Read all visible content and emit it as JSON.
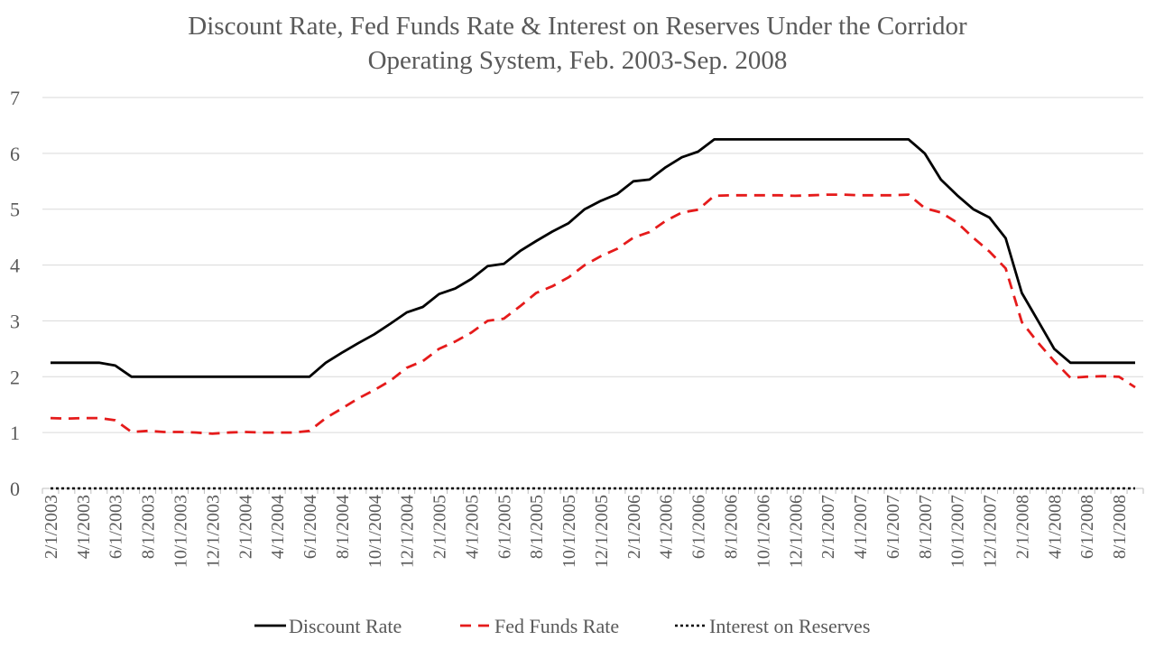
{
  "chart_data": {
    "type": "line",
    "title": "Discount Rate, Fed Funds Rate & Interest on Reserves Under the Corridor Operating System, Feb. 2003-Sep. 2008",
    "title_lines": [
      "Discount Rate, Fed Funds Rate & Interest on Reserves Under the Corridor",
      "Operating System, Feb. 2003-Sep. 2008"
    ],
    "xlabel": "",
    "ylabel": "",
    "ylim": [
      0,
      7
    ],
    "yticks": [
      "0",
      "1",
      "2",
      "3",
      "4",
      "5",
      "6",
      "7"
    ],
    "grid": "horizontal",
    "legend_position": "bottom",
    "x_tick_labels": [
      "2/1/2003",
      "4/1/2003",
      "6/1/2003",
      "8/1/2003",
      "10/1/2003",
      "12/1/2003",
      "2/1/2004",
      "4/1/2004",
      "6/1/2004",
      "8/1/2004",
      "10/1/2004",
      "12/1/2004",
      "2/1/2005",
      "4/1/2005",
      "6/1/2005",
      "8/1/2005",
      "10/1/2005",
      "12/1/2005",
      "2/1/2006",
      "4/1/2006",
      "6/1/2006",
      "8/1/2006",
      "10/1/2006",
      "12/1/2006",
      "2/1/2007",
      "4/1/2007",
      "6/1/2007",
      "8/1/2007",
      "10/1/2007",
      "12/1/2007",
      "2/1/2008",
      "4/1/2008",
      "6/1/2008",
      "8/1/2008"
    ],
    "x": [
      "2/1/2003",
      "3/1/2003",
      "4/1/2003",
      "5/1/2003",
      "6/1/2003",
      "7/1/2003",
      "8/1/2003",
      "9/1/2003",
      "10/1/2003",
      "11/1/2003",
      "12/1/2003",
      "1/1/2004",
      "2/1/2004",
      "3/1/2004",
      "4/1/2004",
      "5/1/2004",
      "6/1/2004",
      "7/1/2004",
      "8/1/2004",
      "9/1/2004",
      "10/1/2004",
      "11/1/2004",
      "12/1/2004",
      "1/1/2005",
      "2/1/2005",
      "3/1/2005",
      "4/1/2005",
      "5/1/2005",
      "6/1/2005",
      "7/1/2005",
      "8/1/2005",
      "9/1/2005",
      "10/1/2005",
      "11/1/2005",
      "12/1/2005",
      "1/1/2006",
      "2/1/2006",
      "3/1/2006",
      "4/1/2006",
      "5/1/2006",
      "6/1/2006",
      "7/1/2006",
      "8/1/2006",
      "9/1/2006",
      "10/1/2006",
      "11/1/2006",
      "12/1/2006",
      "1/1/2007",
      "2/1/2007",
      "3/1/2007",
      "4/1/2007",
      "5/1/2007",
      "6/1/2007",
      "7/1/2007",
      "8/1/2007",
      "9/1/2007",
      "10/1/2007",
      "11/1/2007",
      "12/1/2007",
      "1/1/2008",
      "2/1/2008",
      "3/1/2008",
      "4/1/2008",
      "5/1/2008",
      "6/1/2008",
      "7/1/2008",
      "8/1/2008",
      "9/1/2008"
    ],
    "series": [
      {
        "name": "Discount Rate",
        "color": "#000000",
        "style": "solid",
        "values": [
          2.25,
          2.25,
          2.25,
          2.25,
          2.2,
          2.0,
          2.0,
          2.0,
          2.0,
          2.0,
          2.0,
          2.0,
          2.0,
          2.0,
          2.0,
          2.0,
          2.0,
          2.25,
          2.43,
          2.6,
          2.76,
          2.95,
          3.15,
          3.25,
          3.48,
          3.58,
          3.75,
          3.98,
          4.02,
          4.25,
          4.43,
          4.6,
          4.75,
          5.0,
          5.15,
          5.27,
          5.5,
          5.53,
          5.75,
          5.93,
          6.03,
          6.25,
          6.25,
          6.25,
          6.25,
          6.25,
          6.25,
          6.25,
          6.25,
          6.25,
          6.25,
          6.25,
          6.25,
          6.25,
          6.0,
          5.53,
          5.25,
          5.0,
          4.85,
          4.48,
          3.5,
          3.0,
          2.5,
          2.25,
          2.25,
          2.25,
          2.25,
          2.25
        ]
      },
      {
        "name": "Fed Funds Rate",
        "color": "#e51b1b",
        "style": "dashed",
        "values": [
          1.26,
          1.25,
          1.26,
          1.26,
          1.22,
          1.01,
          1.03,
          1.01,
          1.01,
          1.0,
          0.98,
          1.0,
          1.01,
          1.0,
          1.0,
          1.0,
          1.03,
          1.26,
          1.43,
          1.61,
          1.76,
          1.93,
          2.16,
          2.28,
          2.5,
          2.63,
          2.79,
          3.0,
          3.04,
          3.26,
          3.5,
          3.62,
          3.78,
          4.0,
          4.16,
          4.29,
          4.49,
          4.59,
          4.79,
          4.94,
          4.99,
          5.24,
          5.25,
          5.25,
          5.25,
          5.25,
          5.24,
          5.25,
          5.26,
          5.26,
          5.25,
          5.25,
          5.25,
          5.26,
          5.02,
          4.94,
          4.76,
          4.49,
          4.24,
          3.94,
          2.98,
          2.61,
          2.28,
          1.98,
          2.0,
          2.01,
          2.0,
          1.81
        ]
      },
      {
        "name": "Interest on Reserves",
        "color": "#000000",
        "style": "dotted",
        "values": [
          0,
          0,
          0,
          0,
          0,
          0,
          0,
          0,
          0,
          0,
          0,
          0,
          0,
          0,
          0,
          0,
          0,
          0,
          0,
          0,
          0,
          0,
          0,
          0,
          0,
          0,
          0,
          0,
          0,
          0,
          0,
          0,
          0,
          0,
          0,
          0,
          0,
          0,
          0,
          0,
          0,
          0,
          0,
          0,
          0,
          0,
          0,
          0,
          0,
          0,
          0,
          0,
          0,
          0,
          0,
          0,
          0,
          0,
          0,
          0,
          0,
          0,
          0,
          0,
          0,
          0,
          0,
          0
        ]
      }
    ]
  }
}
